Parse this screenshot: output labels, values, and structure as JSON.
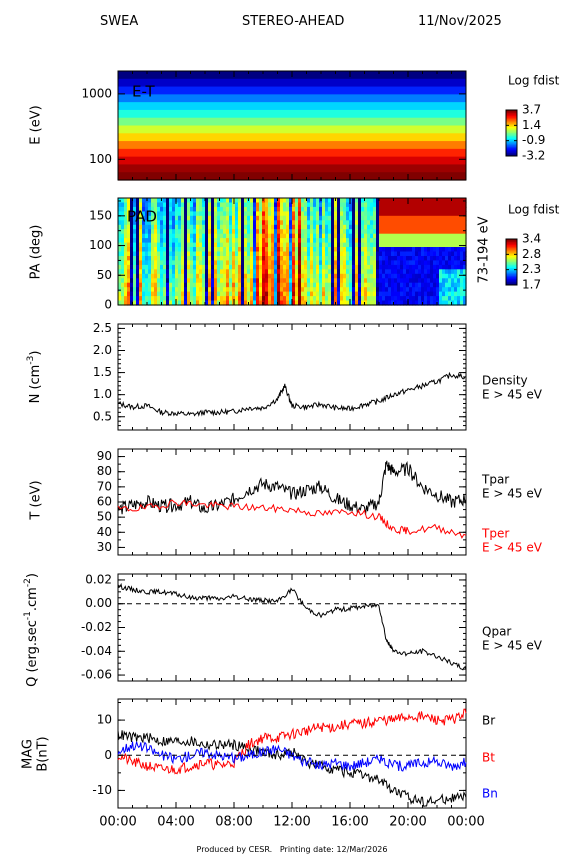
{
  "header": {
    "instrument": "SWEA",
    "spacecraft": "STEREO-AHEAD",
    "date": "11/Nov/2025"
  },
  "footer": {
    "produced_by": "Produced by CESR.",
    "printing": "Printing date: 12/Mar/2026"
  },
  "colors": {
    "black": "#000000",
    "red": "#ff0000",
    "blue": "#0000ff"
  },
  "chart_data": [
    {
      "type": "heatmap",
      "panel_label": "E-T",
      "ylabel": "E (eV)",
      "y_scale": "log",
      "y_ticks": [
        "1000",
        "100"
      ],
      "colorbar": {
        "title": "Log fdist",
        "ticks": [
          "3.7",
          "1.4",
          "-0.9",
          "-3.2"
        ],
        "range": [
          -3.2,
          3.7
        ]
      },
      "x_range_hours": [
        0,
        24
      ],
      "energy_bands_log_fdist": [
        -3.2,
        -2.7,
        -2.1,
        -1.5,
        -0.9,
        -0.4,
        0.2,
        0.8,
        1.4,
        2.0,
        2.6,
        3.1,
        3.5,
        3.7
      ]
    },
    {
      "type": "heatmap",
      "panel_label": "PAD",
      "ylabel": "PA (deg)",
      "y_ticks": [
        "150",
        "100",
        "50",
        "0"
      ],
      "y_range": [
        0,
        180
      ],
      "side_label": "73-194 eV",
      "colorbar": {
        "title": "Log fdist",
        "ticks": [
          "3.4",
          "2.8",
          "2.3",
          "1.7"
        ],
        "range": [
          1.7,
          3.4
        ]
      }
    },
    {
      "type": "line",
      "ylabel": "N (cm",
      "ylabel_sup": "-3",
      "ylabel_end": ")",
      "y_ticks": [
        "2.5",
        "2.0",
        "1.5",
        "1.0",
        "0.5"
      ],
      "ylim": [
        0.2,
        2.6
      ],
      "legend": [
        "Density",
        "E > 45 eV"
      ],
      "series": [
        {
          "name": "Density",
          "x": [
            0,
            1,
            2,
            3,
            4,
            5,
            6,
            7,
            8,
            9,
            10,
            11,
            11.5,
            12,
            13,
            14,
            15,
            16,
            17,
            18,
            19,
            20,
            21,
            22,
            23,
            24
          ],
          "y": [
            0.8,
            0.72,
            0.75,
            0.6,
            0.58,
            0.55,
            0.6,
            0.6,
            0.62,
            0.7,
            0.7,
            0.9,
            1.2,
            0.75,
            0.72,
            0.78,
            0.7,
            0.68,
            0.78,
            0.85,
            1.0,
            1.1,
            1.2,
            1.3,
            1.45,
            1.4
          ]
        }
      ]
    },
    {
      "type": "line",
      "ylabel": "T (eV)",
      "y_ticks": [
        "90",
        "80",
        "70",
        "60",
        "50",
        "40",
        "30"
      ],
      "ylim": [
        25,
        95
      ],
      "legend": [
        "Tpar",
        "E > 45 eV",
        "Tper",
        "E > 45 eV"
      ],
      "series": [
        {
          "name": "Tpar",
          "x": [
            0,
            1,
            2,
            3,
            4,
            5,
            6,
            7,
            8,
            9,
            10,
            11,
            12,
            13,
            14,
            15,
            16,
            17,
            18,
            18.5,
            19,
            20,
            21,
            22,
            23,
            24
          ],
          "y": [
            55,
            58,
            60,
            57,
            58,
            60,
            55,
            58,
            62,
            68,
            72,
            70,
            65,
            68,
            70,
            62,
            58,
            55,
            60,
            85,
            80,
            82,
            70,
            65,
            60,
            62
          ]
        },
        {
          "name": "Tper",
          "x": [
            0,
            2,
            4,
            6,
            8,
            10,
            12,
            14,
            16,
            18,
            19,
            20,
            22,
            24
          ],
          "y": [
            55,
            56,
            60,
            58,
            57,
            56,
            55,
            52,
            54,
            50,
            42,
            41,
            43,
            38
          ]
        }
      ]
    },
    {
      "type": "line",
      "ylabel": "Q (erg.sec",
      "ylabel_sup1": "-1",
      "ylabel_mid": ".cm",
      "ylabel_sup2": "-2",
      "ylabel_end": ")",
      "y_ticks": [
        "0.02",
        "0.00",
        "-0.02",
        "-0.04",
        "-0.06"
      ],
      "ylim": [
        -0.065,
        0.025
      ],
      "legend": [
        "Qpar",
        "E > 45 eV"
      ],
      "series": [
        {
          "name": "Qpar",
          "x": [
            0,
            1,
            2,
            3,
            4,
            5,
            6,
            7,
            8,
            9,
            10,
            11,
            12,
            13,
            14,
            15,
            16,
            17,
            18,
            18.5,
            19,
            20,
            21,
            22,
            23,
            24
          ],
          "y": [
            0.015,
            0.012,
            0.01,
            0.01,
            0.008,
            0.005,
            0.005,
            0.004,
            0.006,
            0.004,
            0.003,
            0.002,
            0.012,
            -0.004,
            -0.01,
            -0.005,
            -0.004,
            -0.002,
            -0.001,
            -0.03,
            -0.04,
            -0.042,
            -0.04,
            -0.044,
            -0.05,
            -0.055
          ]
        }
      ]
    },
    {
      "type": "line",
      "ylabel": "MAG",
      "ylabel2": "B(nT)",
      "y_ticks": [
        "10",
        "0",
        "-10"
      ],
      "ylim": [
        -15,
        16
      ],
      "legend": [
        "Br",
        "Bt",
        "Bn"
      ],
      "x_ticks": [
        "00:00",
        "04:00",
        "08:00",
        "12:00",
        "16:00",
        "20:00",
        "00:00"
      ],
      "series": [
        {
          "name": "Br",
          "x": [
            0,
            1,
            2,
            3,
            4,
            5,
            6,
            7,
            8,
            9,
            10,
            11,
            12,
            13,
            14,
            15,
            16,
            17,
            18,
            19,
            20,
            21,
            22,
            23,
            24
          ],
          "y": [
            6,
            5,
            5,
            4,
            4,
            4,
            3,
            3,
            3,
            2,
            1,
            0,
            1,
            -2,
            -3,
            -4,
            -5,
            -6,
            -7,
            -10,
            -12,
            -13,
            -13,
            -12,
            -12
          ]
        },
        {
          "name": "Bt",
          "x": [
            0,
            1,
            2,
            3,
            4,
            5,
            6,
            7,
            8,
            9,
            10,
            11,
            12,
            13,
            14,
            15,
            16,
            17,
            18,
            19,
            20,
            21,
            22,
            23,
            24
          ],
          "y": [
            0,
            -2,
            -3,
            -4,
            -4,
            -3,
            -2,
            -3,
            -2,
            3,
            5,
            5,
            6,
            7,
            8,
            8,
            9,
            9,
            10,
            10,
            11,
            11,
            10,
            10,
            12
          ]
        },
        {
          "name": "Bn",
          "x": [
            0,
            1,
            2,
            3,
            4,
            5,
            6,
            7,
            8,
            9,
            10,
            11,
            12,
            13,
            14,
            15,
            16,
            17,
            18,
            19,
            20,
            21,
            22,
            23,
            24
          ],
          "y": [
            1,
            3,
            2,
            0,
            -1,
            0,
            1,
            0,
            -1,
            0,
            1,
            2,
            0,
            -2,
            -3,
            -2,
            -3,
            -2,
            -1,
            -3,
            -3,
            -2,
            -2,
            -3,
            -2
          ]
        }
      ]
    }
  ]
}
